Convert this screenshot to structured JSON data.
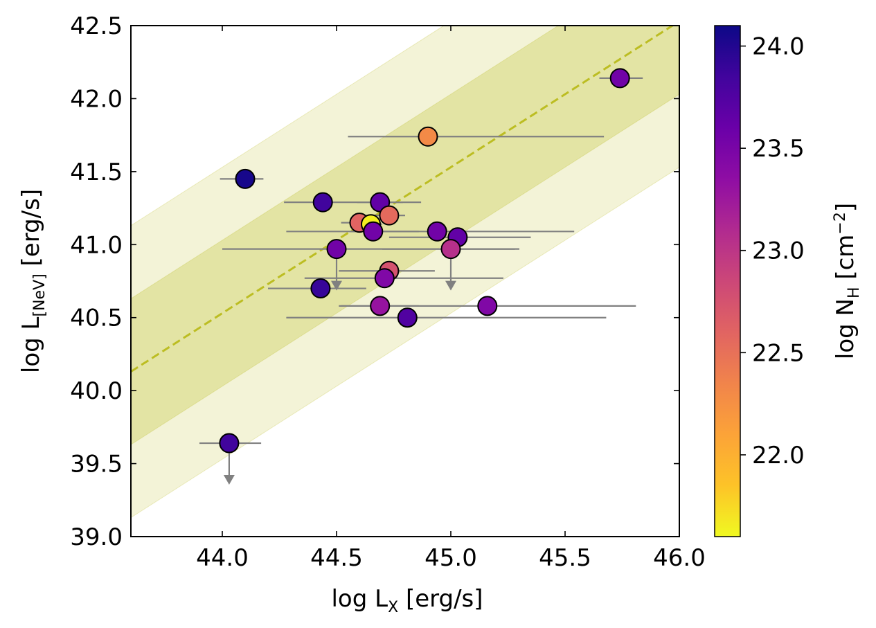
{
  "chart_data": {
    "type": "scatter",
    "xlabel": {
      "main": "log L",
      "sub": "X",
      "unit": " [erg/s]"
    },
    "ylabel": {
      "main": "log L",
      "sub": "[NeV]",
      "unit": " [erg/s]"
    },
    "colorbar_label": {
      "main": "log N",
      "sub": "H",
      "unit": " [cm",
      "exp": "−2",
      "close": "]"
    },
    "xlim": [
      43.6,
      46.0
    ],
    "ylim": [
      39.0,
      42.5
    ],
    "xticks": [
      "44.0",
      "44.5",
      "45.0",
      "45.5",
      "46.0"
    ],
    "yticks": [
      "39.0",
      "39.5",
      "40.0",
      "40.5",
      "41.0",
      "41.5",
      "42.0",
      "42.5"
    ],
    "colorbar": {
      "colormap": "plasma",
      "range": [
        21.6,
        24.1
      ],
      "ticks": [
        "22.0",
        "22.5",
        "23.0",
        "23.5",
        "24.0"
      ]
    },
    "relation": {
      "slope": 1.0,
      "intercept": -3.47,
      "color": "#bcbd22",
      "style": "dashed"
    },
    "bands": [
      {
        "width": 0.5,
        "color": "#bcbd22",
        "opacity": 0.28
      },
      {
        "width": 1.0,
        "color": "#bcbd22",
        "opacity": 0.18
      }
    ],
    "errorbar_color": "#808080",
    "points": [
      {
        "x": 45.74,
        "y": 42.14,
        "xerr": [
          0.09,
          0.1
        ],
        "nh": 23.55,
        "upper_limit": false
      },
      {
        "x": 44.9,
        "y": 41.74,
        "xerr": [
          0.35,
          0.77
        ],
        "nh": 22.3,
        "upper_limit": false
      },
      {
        "x": 44.1,
        "y": 41.45,
        "xerr": [
          0.11,
          0.08
        ],
        "nh": 24.05,
        "upper_limit": false
      },
      {
        "x": 44.44,
        "y": 41.29,
        "xerr": [
          0.17,
          0.43
        ],
        "nh": 23.85,
        "upper_limit": false
      },
      {
        "x": 44.69,
        "y": 41.29,
        "xerr": [
          0.1,
          0.1
        ],
        "nh": 23.65,
        "upper_limit": false
      },
      {
        "x": 44.73,
        "y": 41.2,
        "xerr": [
          0.1,
          0.07
        ],
        "nh": 22.55,
        "upper_limit": false
      },
      {
        "x": 44.6,
        "y": 41.15,
        "xerr": [
          0.08,
          0.08
        ],
        "nh": 22.6,
        "upper_limit": false
      },
      {
        "x": 44.65,
        "y": 41.14,
        "xerr": [
          0.05,
          0.05
        ],
        "nh": 21.65,
        "upper_limit": false
      },
      {
        "x": 44.66,
        "y": 41.09,
        "xerr": [
          0.38,
          0.2
        ],
        "nh": 23.55,
        "upper_limit": false
      },
      {
        "x": 44.94,
        "y": 41.09,
        "xerr": [
          0.38,
          0.6
        ],
        "nh": 23.55,
        "upper_limit": false
      },
      {
        "x": 45.03,
        "y": 41.05,
        "xerr": [
          0.3,
          0.32
        ],
        "nh": 23.65,
        "upper_limit": false
      },
      {
        "x": 44.5,
        "y": 40.97,
        "xerr": [
          0.5,
          0.78
        ],
        "nh": 23.55,
        "upper_limit": true
      },
      {
        "x": 45.0,
        "y": 40.97,
        "xerr": [
          0.3,
          0.3
        ],
        "nh": 23.05,
        "upper_limit": true
      },
      {
        "x": 44.73,
        "y": 40.82,
        "xerr": [
          0.22,
          0.2
        ],
        "nh": 22.75,
        "upper_limit": false
      },
      {
        "x": 44.71,
        "y": 40.77,
        "xerr": [
          0.35,
          0.52
        ],
        "nh": 23.45,
        "upper_limit": false
      },
      {
        "x": 44.43,
        "y": 40.7,
        "xerr": [
          0.23,
          0.2
        ],
        "nh": 23.9,
        "upper_limit": false
      },
      {
        "x": 44.69,
        "y": 40.58,
        "xerr": [
          0.17,
          0.17
        ],
        "nh": 23.3,
        "upper_limit": false
      },
      {
        "x": 45.16,
        "y": 40.58,
        "xerr": [
          0.65,
          0.65
        ],
        "nh": 23.45,
        "upper_limit": false
      },
      {
        "x": 44.81,
        "y": 40.5,
        "xerr": [
          0.53,
          0.87
        ],
        "nh": 23.75,
        "upper_limit": false
      },
      {
        "x": 44.03,
        "y": 39.64,
        "xerr": [
          0.13,
          0.14
        ],
        "nh": 23.85,
        "upper_limit": true
      }
    ]
  }
}
